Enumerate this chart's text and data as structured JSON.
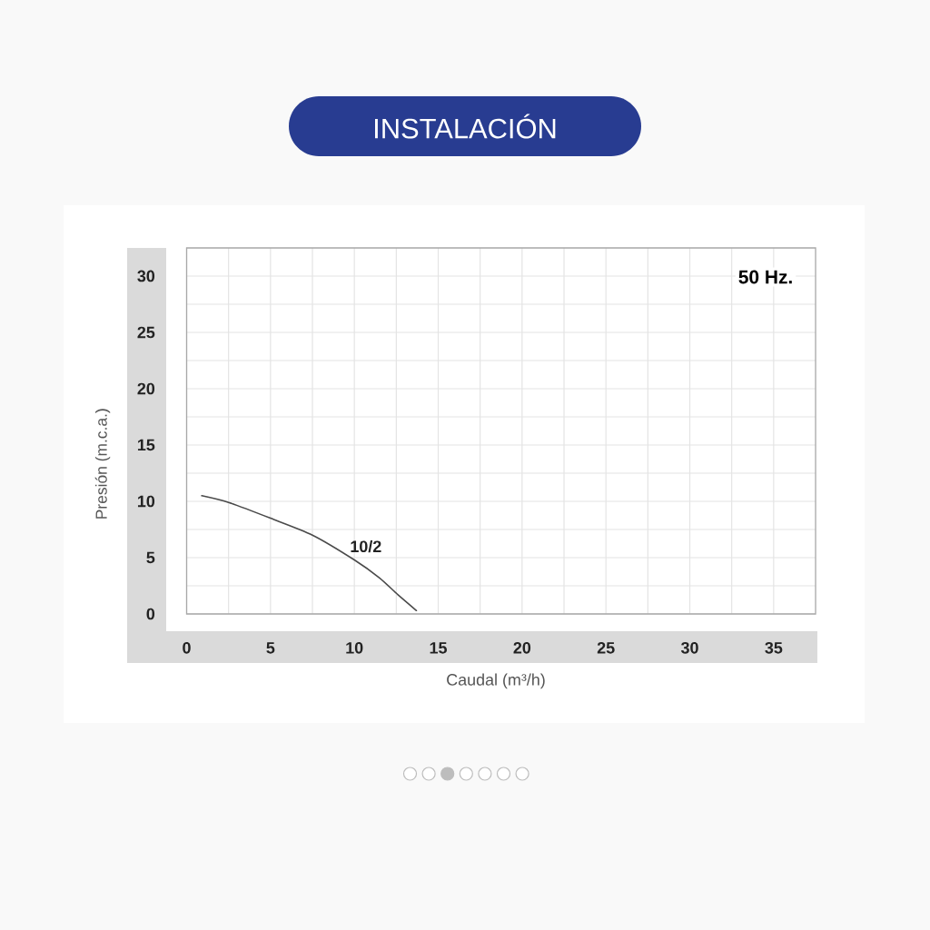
{
  "chart_data": {
    "type": "line",
    "title": "INSTALACIÓN",
    "xlabel": "Caudal (m³/h)",
    "ylabel": "Presión (m.c.a.)",
    "annotations": [
      "50 Hz."
    ],
    "x": [
      0.9,
      2.5,
      5,
      7.5,
      10,
      11.5,
      12.6,
      13.7
    ],
    "series": [
      {
        "name": "10/2",
        "color": "#4a4a4a",
        "values": [
          10.5,
          9.9,
          8.5,
          7.0,
          4.8,
          3.2,
          1.7,
          0.3
        ]
      }
    ],
    "xlim": [
      0,
      37.5
    ],
    "ylim": [
      0,
      32.5
    ],
    "xticks": [
      0,
      5,
      10,
      15,
      20,
      25,
      30,
      35
    ],
    "yticks": [
      0,
      5,
      10,
      15,
      20,
      25,
      30
    ],
    "grid": true,
    "line_style": "solid"
  }
}
